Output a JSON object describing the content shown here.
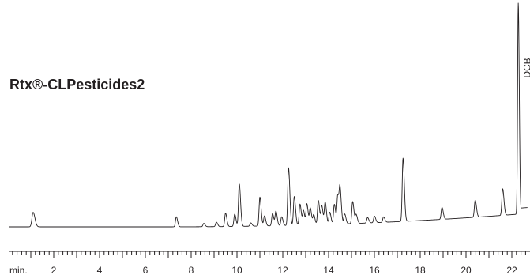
{
  "chart_data": {
    "type": "line",
    "title": "Rtx®-CLPesticides2",
    "xlabel": "",
    "ylabel": "",
    "x_axis_unit_label": "min.",
    "xlim": [
      0,
      22.6
    ],
    "ylim": [
      0,
      100
    ],
    "x_ticks_labeled": [
      2,
      4,
      6,
      8,
      10,
      12,
      14,
      16,
      18,
      20,
      22
    ],
    "minor_tick_step": 0.2,
    "grid": false,
    "legend": "none",
    "annotations": [
      {
        "text": "DCB",
        "x": 22.3
      }
    ],
    "series": [
      {
        "peaks": [
          {
            "x": 1.1,
            "y": 6.5
          },
          {
            "x": 7.35,
            "y": 4.5
          },
          {
            "x": 8.55,
            "y": 1.5
          },
          {
            "x": 9.1,
            "y": 2.0
          },
          {
            "x": 9.5,
            "y": 6.0
          },
          {
            "x": 9.9,
            "y": 5.5
          },
          {
            "x": 10.1,
            "y": 19.0
          },
          {
            "x": 10.6,
            "y": 1.5
          },
          {
            "x": 11.0,
            "y": 13.0
          },
          {
            "x": 11.2,
            "y": 4.5
          },
          {
            "x": 11.55,
            "y": 5.5
          },
          {
            "x": 11.7,
            "y": 6.5
          },
          {
            "x": 11.95,
            "y": 4.0
          },
          {
            "x": 12.25,
            "y": 26.0
          },
          {
            "x": 12.5,
            "y": 13.0
          },
          {
            "x": 12.75,
            "y": 9.5
          },
          {
            "x": 12.9,
            "y": 6.5
          },
          {
            "x": 13.05,
            "y": 9.5
          },
          {
            "x": 13.2,
            "y": 7.5
          },
          {
            "x": 13.35,
            "y": 4.5
          },
          {
            "x": 13.55,
            "y": 11.0
          },
          {
            "x": 13.7,
            "y": 8.5
          },
          {
            "x": 13.85,
            "y": 10.0
          },
          {
            "x": 14.05,
            "y": 5.5
          },
          {
            "x": 14.25,
            "y": 9.0
          },
          {
            "x": 14.4,
            "y": 13.0
          },
          {
            "x": 14.5,
            "y": 15.0
          },
          {
            "x": 14.7,
            "y": 4.5
          },
          {
            "x": 15.05,
            "y": 10.0
          },
          {
            "x": 15.2,
            "y": 4.0
          },
          {
            "x": 15.7,
            "y": 2.5
          },
          {
            "x": 16.0,
            "y": 3.0
          },
          {
            "x": 16.4,
            "y": 2.5
          },
          {
            "x": 17.25,
            "y": 29.0
          },
          {
            "x": 18.95,
            "y": 5.5
          },
          {
            "x": 20.4,
            "y": 8.0
          },
          {
            "x": 21.6,
            "y": 12.5
          },
          {
            "x": 22.28,
            "y": 100.0
          }
        ]
      }
    ]
  }
}
